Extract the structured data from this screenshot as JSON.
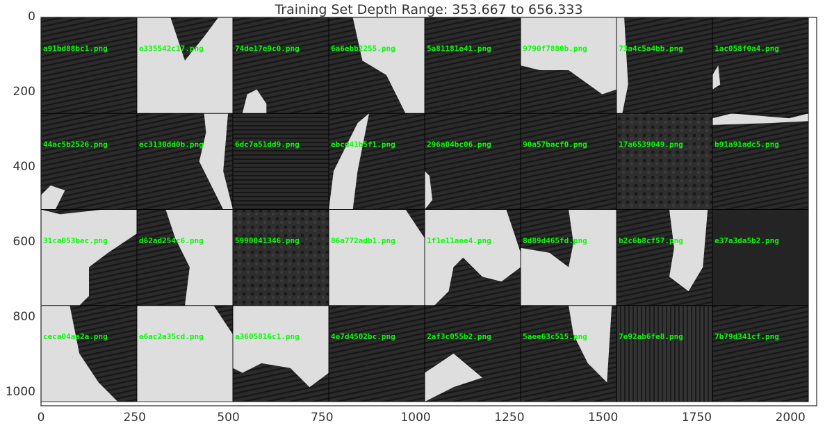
{
  "chart_data": {
    "type": "image_grid",
    "title": "Training Set Depth Range: 353.667 to 656.333",
    "xlim": [
      0,
      2070
    ],
    "ylim": [
      1035,
      0
    ],
    "tile_size": 256,
    "rows": 4,
    "cols": 8,
    "xticks": [
      0,
      250,
      500,
      750,
      1000,
      1250,
      1500,
      1750,
      2000
    ],
    "yticks": [
      0,
      200,
      400,
      600,
      800,
      1000
    ],
    "label_color": "#00ff00",
    "tiles": [
      {
        "label": "a91bd88bc1.png",
        "style": "dark"
      },
      {
        "label": "e335542c17.png",
        "style": "light-top"
      },
      {
        "label": "74de17e9c0.png",
        "style": "dark-blob"
      },
      {
        "label": "6a6ebb2255.png",
        "style": "diag-right"
      },
      {
        "label": "5a81181e41.png",
        "style": "dark"
      },
      {
        "label": "9790f7880b.png",
        "style": "light-upper"
      },
      {
        "label": "73a4c5a4bb.png",
        "style": "dark-stripe"
      },
      {
        "label": "1ac058f0a4.png",
        "style": "dark-corner"
      },
      {
        "label": "44ac5b2526.png",
        "style": "dark-corner-bl"
      },
      {
        "label": "ec3130dd0b.png",
        "style": "wedge-right"
      },
      {
        "label": "6dc7a51dd9.png",
        "style": "dark-layers"
      },
      {
        "label": "ebcd41b5f1.png",
        "style": "split-v"
      },
      {
        "label": "296a04bc06.png",
        "style": "dark-corner-bl2"
      },
      {
        "label": "90a57bacf0.png",
        "style": "dark"
      },
      {
        "label": "17a6539049.png",
        "style": "dark-noise"
      },
      {
        "label": "b91a91adc5.png",
        "style": "dark-topband"
      },
      {
        "label": "31ca053bec.png",
        "style": "light-bottom"
      },
      {
        "label": "d62ad254c6.png",
        "style": "light-right"
      },
      {
        "label": "5990041346.png",
        "style": "dark-noise"
      },
      {
        "label": "86a772adb1.png",
        "style": "light-mostly"
      },
      {
        "label": "1f1e11aee4.png",
        "style": "light-left"
      },
      {
        "label": "8d89d465fd.png",
        "style": "light-bottom2"
      },
      {
        "label": "b2c6b8cf57.png",
        "style": "wedge-right2"
      },
      {
        "label": "e37a3da5b2.png",
        "style": "dark-flat"
      },
      {
        "label": "ceca04aa2a.png",
        "style": "light-tl"
      },
      {
        "label": "e6ac2a35cd.png",
        "style": "light-mostly"
      },
      {
        "label": "a3605816c1.png",
        "style": "light-top2"
      },
      {
        "label": "4e7d4502bc.png",
        "style": "dark"
      },
      {
        "label": "2af3c055b2.png",
        "style": "dark-corner-bl3"
      },
      {
        "label": "5aee63c515.png",
        "style": "wedge-right3"
      },
      {
        "label": "7e92ab6fe8.png",
        "style": "dark-vert"
      },
      {
        "label": "7b79d341cf.png",
        "style": "dark"
      }
    ]
  }
}
